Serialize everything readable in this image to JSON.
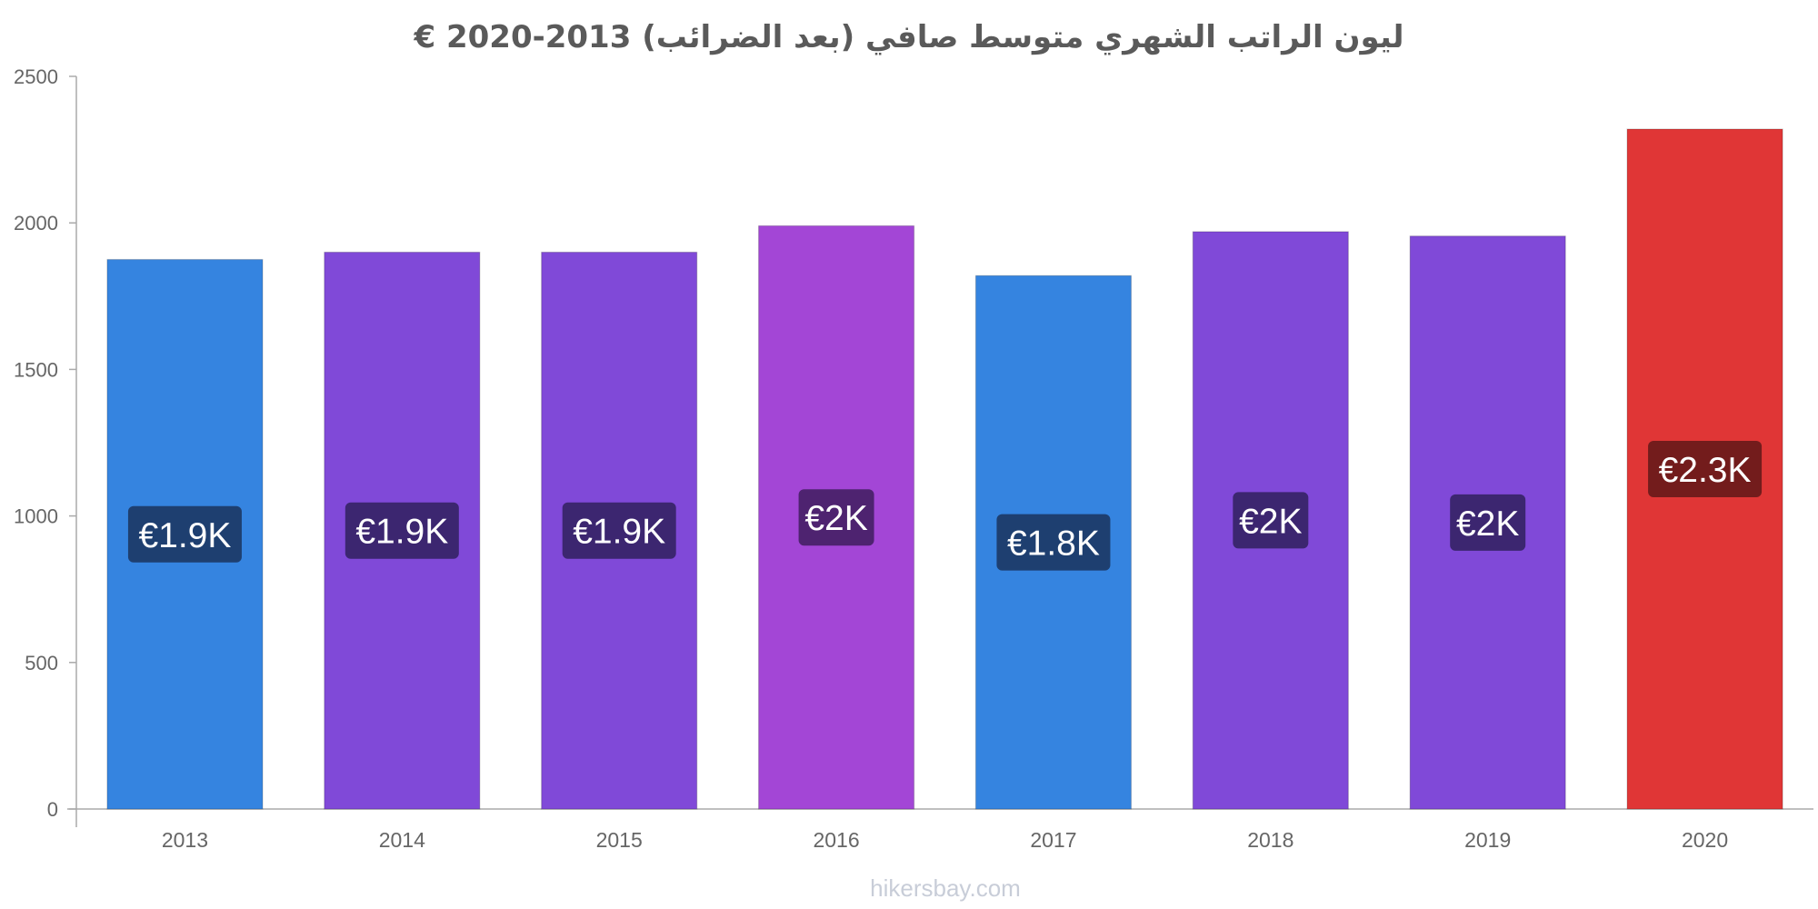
{
  "chart_data": {
    "type": "bar",
    "title": "ليون الراتب الشهري متوسط صافي (بعد الضرائب) 2013-2020 €",
    "xlabel": "",
    "ylabel": "",
    "ylim": [
      0,
      2500
    ],
    "yticks": [
      0,
      500,
      1000,
      1500,
      2000,
      2500
    ],
    "grid": false,
    "categories": [
      "2013",
      "2014",
      "2015",
      "2016",
      "2017",
      "2018",
      "2019",
      "2020"
    ],
    "values": [
      1875,
      1900,
      1900,
      1990,
      1820,
      1970,
      1955,
      2320
    ],
    "labels": [
      "€1.9K",
      "€1.9K",
      "€1.9K",
      "€2K",
      "€1.8K",
      "€2K",
      "€2K",
      "€2.3K"
    ],
    "bar_colors": [
      "#3584e0",
      "#8049d8",
      "#8049d8",
      "#a346d6",
      "#3584e0",
      "#8049d8",
      "#8049d8",
      "#e03636"
    ],
    "label_colors": [
      "#1e3f70",
      "#3c2670",
      "#3c2670",
      "#4e2370",
      "#1e3f70",
      "#3c2670",
      "#3c2670",
      "#731c1c"
    ]
  },
  "watermark": "hikersbay.com"
}
